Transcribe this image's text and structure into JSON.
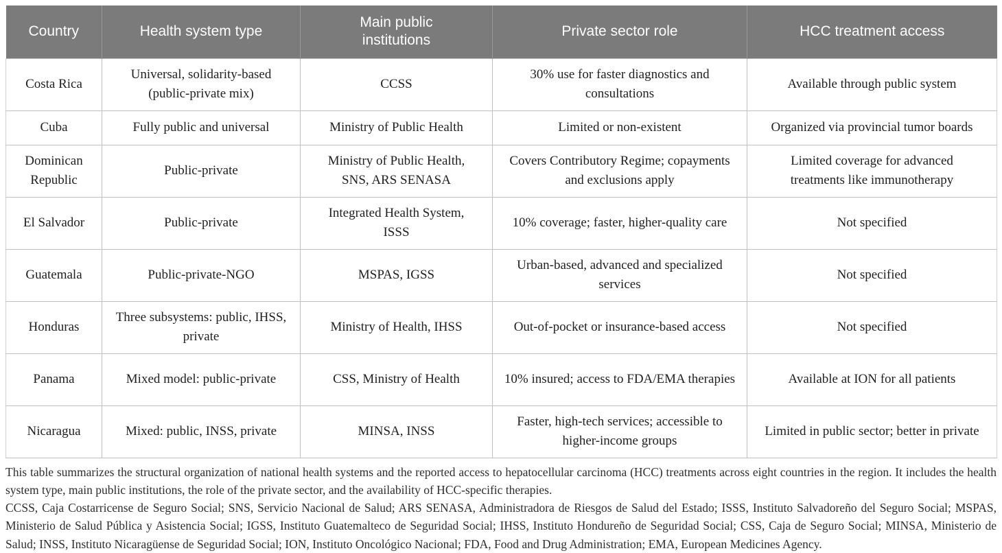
{
  "colors": {
    "header_bg": "#7b7b7b",
    "header_text": "#ffffff",
    "body_text": "#1f1f1f",
    "border": "#c0c0c0",
    "background": "#ffffff"
  },
  "table": {
    "columns": [
      {
        "key": "country",
        "label": "Country"
      },
      {
        "key": "health-system-type",
        "label": "Health system type"
      },
      {
        "key": "main-public-institutions",
        "label": "Main public institutions"
      },
      {
        "key": "private-sector-role",
        "label": "Private sector role"
      },
      {
        "key": "hcc-treatment-access",
        "label": "HCC treatment access"
      }
    ],
    "rows": [
      [
        "Costa Rica",
        "Universal, solidarity-based (public-private mix)",
        "CCSS",
        "30% use for faster diagnostics and consultations",
        "Available through public system"
      ],
      [
        "Cuba",
        "Fully public and universal",
        "Ministry of Public Health",
        "Limited or non-existent",
        "Organized via provincial tumor boards"
      ],
      [
        "Dominican Republic",
        "Public-private",
        "Ministry of Public Health, SNS, ARS SENASA",
        "Covers Contributory Regime; copayments and exclusions apply",
        "Limited coverage for advanced treatments like immunotherapy"
      ],
      [
        "El Salvador",
        "Public-private",
        "Integrated Health System, ISSS",
        "10% coverage; faster, higher-quality care",
        "Not specified"
      ],
      [
        "Guatemala",
        "Public-private-NGO",
        "MSPAS, IGSS",
        "Urban-based, advanced and specialized services",
        "Not specified"
      ],
      [
        "Honduras",
        "Three subsystems: public, IHSS, private",
        "Ministry of Health, IHSS",
        "Out-of-pocket or insurance-based access",
        "Not specified"
      ],
      [
        "Panama",
        "Mixed model: public-private",
        "CSS, Ministry of Health",
        "10% insured; access to FDA/EMA therapies",
        "Available at ION for all patients"
      ],
      [
        "Nicaragua",
        "Mixed: public, INSS, private",
        "MINSA, INSS",
        "Faster, high-tech services; accessible to higher-income groups",
        "Limited in public sector; better in private"
      ]
    ]
  },
  "footnotes": {
    "summary": "This table summarizes the structural organization of national health systems and the reported access to hepatocellular carcinoma (HCC) treatments across eight countries in the region. It includes the health system type, main public institutions, the role of the private sector, and the availability of HCC-specific therapies.",
    "abbreviations": "CCSS, Caja Costarricense de Seguro Social; SNS, Servicio Nacional de Salud; ARS SENASA, Administradora de Riesgos de Salud del Estado; ISSS, Instituto Salvadoreño del Seguro Social; MSPAS, Ministerio de Salud Pública y Asistencia Social; IGSS, Instituto Guatemalteco de Seguridad Social; IHSS, Instituto Hondureño de Seguridad Social; CSS, Caja de Seguro Social; MINSA, Ministerio de Salud; INSS, Instituto Nicaragüense de Seguridad Social; ION, Instituto Oncológico Nacional; FDA, Food and Drug Administration; EMA, European Medicines Agency."
  }
}
